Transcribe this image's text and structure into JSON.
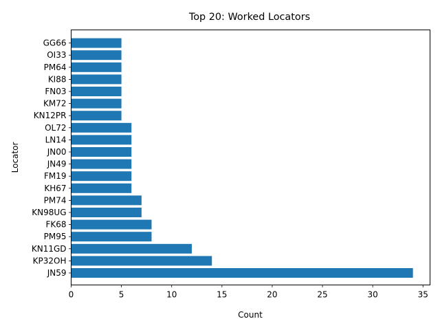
{
  "chart_data": {
    "type": "bar",
    "orientation": "horizontal",
    "title": "Top 20: Worked Locators",
    "xlabel": "Count",
    "ylabel": "Locator",
    "xlim": [
      0,
      35.7
    ],
    "xticks": [
      0,
      5,
      10,
      15,
      20,
      25,
      30,
      35
    ],
    "grid": false,
    "legend": "none",
    "bar_color": "#1f77b4",
    "categories": [
      "JN59",
      "KP32OH",
      "KN11GD",
      "PM95",
      "FK68",
      "KN98UG",
      "PM74",
      "KH67",
      "FM19",
      "JN49",
      "JN00",
      "LN14",
      "OL72",
      "KN12PR",
      "KM72",
      "FN03",
      "KI88",
      "PM64",
      "OI33",
      "GG66"
    ],
    "values": [
      34,
      14,
      12,
      8,
      8,
      7,
      7,
      6,
      6,
      6,
      6,
      6,
      6,
      5,
      5,
      5,
      5,
      5,
      5,
      5
    ]
  }
}
